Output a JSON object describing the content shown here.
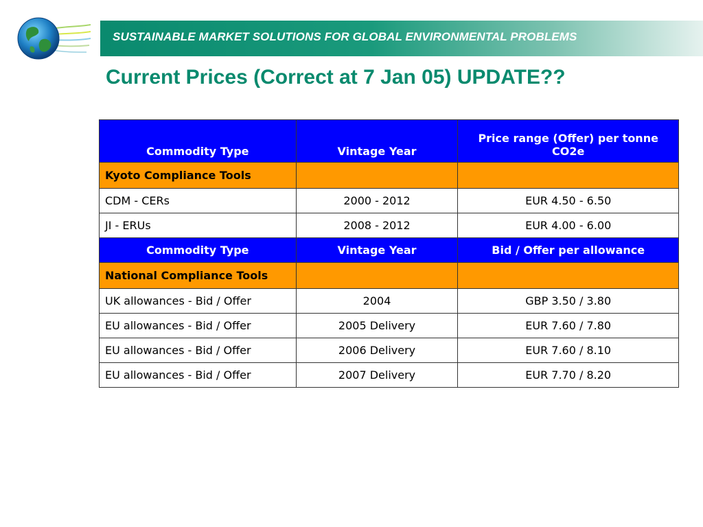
{
  "banner": {
    "text": "SUSTAINABLE MARKET SOLUTIONS FOR GLOBAL ENVIRONMENTAL PROBLEMS"
  },
  "colors": {
    "banner_green": "#0a8a6e",
    "header_blue": "#0000ff",
    "section_orange": "#ff9900"
  },
  "logo": {
    "icon": "globe-logo-icon"
  },
  "title": "Current Prices (Correct at 7 Jan 05) UPDATE??",
  "table": {
    "kyoto_header": [
      "Commodity Type",
      "Vintage Year",
      "Price range (Offer) per tonne CO2e"
    ],
    "kyoto_section": "Kyoto Compliance Tools",
    "kyoto_rows": [
      [
        "CDM - CERs",
        "2000 - 2012",
        "EUR 4.50 - 6.50"
      ],
      [
        "JI - ERUs",
        "2008 - 2012",
        "EUR 4.00 - 6.00"
      ]
    ],
    "national_header": [
      "Commodity Type",
      "Vintage Year",
      "Bid / Offer per allowance"
    ],
    "national_section": "National Compliance Tools",
    "national_rows": [
      [
        "UK allowances - Bid / Offer",
        "2004",
        "GBP 3.50 / 3.80"
      ],
      [
        "EU allowances - Bid / Offer",
        "2005 Delivery",
        "EUR 7.60 / 7.80"
      ],
      [
        "EU allowances - Bid / Offer",
        "2006 Delivery",
        "EUR 7.60 / 8.10"
      ],
      [
        "EU allowances - Bid / Offer",
        "2007 Delivery",
        "EUR  7.70 / 8.20"
      ]
    ]
  }
}
